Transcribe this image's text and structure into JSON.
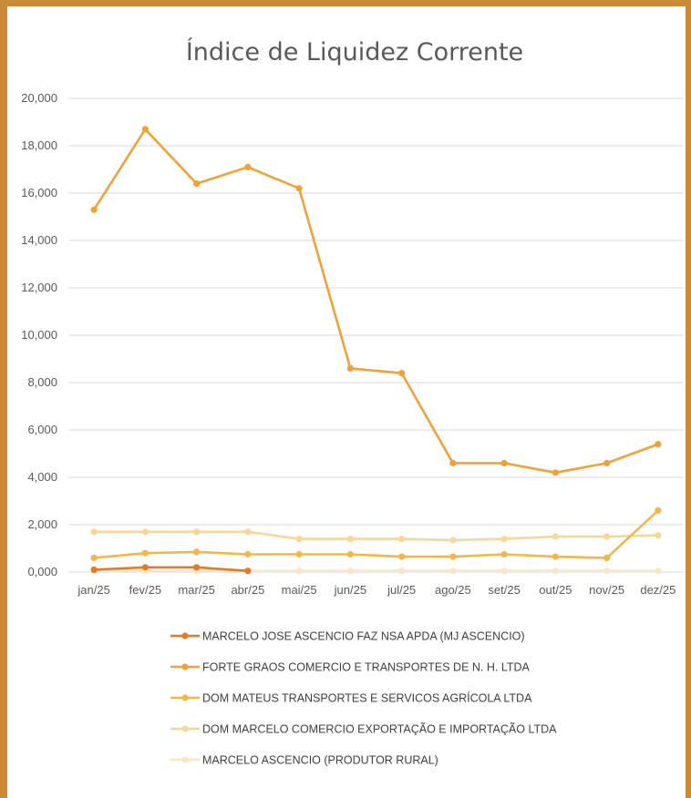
{
  "chart_data": {
    "type": "line",
    "title": "Índice de Liquidez Corrente",
    "xlabel": "",
    "ylabel": "",
    "categories": [
      "jan/25",
      "fev/25",
      "mar/25",
      "abr/25",
      "mai/25",
      "jun/25",
      "jul/25",
      "ago/25",
      "set/25",
      "out/25",
      "nov/25",
      "dez/25"
    ],
    "y_ticks": [
      "0,000",
      "2,000",
      "4,000",
      "6,000",
      "8,000",
      "10,000",
      "12,000",
      "14,000",
      "16,000",
      "18,000",
      "20,000"
    ],
    "ylim": [
      0,
      20
    ],
    "grid": true,
    "legend_position": "bottom",
    "series": [
      {
        "name": "MARCELO JOSE ASCENCIO FAZ NSA APDA (MJ ASCENCIO)",
        "color": "#e07b28",
        "values": [
          0.1,
          0.2,
          0.2,
          0.05,
          null,
          null,
          null,
          null,
          null,
          null,
          null,
          null
        ]
      },
      {
        "name": "FORTE GRAOS COMERCIO E TRANSPORTES DE N. H. LTDA",
        "color": "#f0a23a",
        "values": [
          15.3,
          18.7,
          16.4,
          17.1,
          16.2,
          8.6,
          8.4,
          4.6,
          4.6,
          4.2,
          4.6,
          5.4
        ]
      },
      {
        "name": "DOM MATEUS TRANSPORTES E SERVICOS AGRÍCOLA LTDA",
        "color": "#f2b74a",
        "values": [
          0.6,
          0.8,
          0.85,
          0.75,
          0.75,
          0.75,
          0.65,
          0.65,
          0.75,
          0.65,
          0.6,
          2.6
        ]
      },
      {
        "name": "DOM MARCELO COMERCIO EXPORTAÇÃO E IMPORTAÇÃO LTDA",
        "color": "#f7d69a",
        "values": [
          1.7,
          1.7,
          1.7,
          1.7,
          1.4,
          1.4,
          1.4,
          1.35,
          1.4,
          1.5,
          1.5,
          1.55
        ]
      },
      {
        "name": "MARCELO ASCENCIO (PRODUTOR RURAL)",
        "color": "#fae6c2",
        "values": [
          0.05,
          0.05,
          0.05,
          0.05,
          0.05,
          0.05,
          0.05,
          0.05,
          0.05,
          0.05,
          0.05,
          0.05
        ]
      }
    ]
  }
}
